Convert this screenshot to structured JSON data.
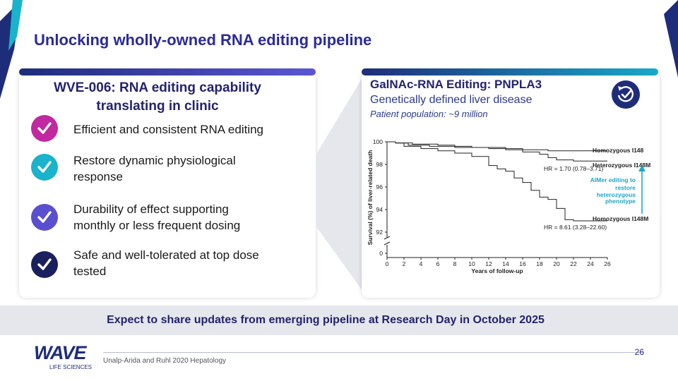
{
  "slide": {
    "title": "Unlocking wholly-owned RNA editing pipeline",
    "page_number": "26",
    "source": "Unalp-Arida and Ruhl 2020 Hepatology",
    "footer_message": "Expect to share updates from emerging pipeline at Research Day in October 2025",
    "logo": {
      "name": "WAVE",
      "sub": "LIFE SCIENCES"
    }
  },
  "left_panel": {
    "heading": "WVE-006: RNA editing capability translating in clinic",
    "items": [
      {
        "text": "Efficient and consistent RNA editing",
        "color": "#c0299f"
      },
      {
        "text": "Restore dynamic physiological response",
        "color": "#19b3cc"
      },
      {
        "text": "Durability of effect supporting monthly or less frequent dosing",
        "color": "#5a4fcf"
      },
      {
        "text": "Safe and well-tolerated at top dose tested",
        "color": "#1a1f5e"
      }
    ]
  },
  "right_panel": {
    "heading": "GalNAc-RNA Editing: PNPLA3",
    "subtitle": "Genetically defined liver disease",
    "population": "Patient population: ~9 million",
    "badge_icon": "clock-check-icon"
  },
  "chart_data": {
    "type": "line",
    "xlabel": "Years of follow-up",
    "ylabel": "Survival (%) of liver-related death",
    "xlim": [
      0,
      26
    ],
    "xticks": [
      "0",
      "2",
      "4",
      "6",
      "8",
      "10",
      "12",
      "14",
      "16",
      "18",
      "20",
      "22",
      "24",
      "26"
    ],
    "yticks": [
      "0",
      "92",
      "94",
      "96",
      "98",
      "100"
    ],
    "axis_break": true,
    "series": [
      {
        "name": "Homozygous I148",
        "x": [
          0,
          1,
          3,
          6,
          8,
          10,
          12,
          14,
          16,
          18,
          19,
          20,
          26
        ],
        "y": [
          100,
          99.9,
          99.8,
          99.7,
          99.6,
          99.5,
          99.5,
          99.4,
          99.3,
          99.3,
          99.2,
          99.2,
          99.2
        ]
      },
      {
        "name": "Heterozygous I148M",
        "x": [
          0,
          1,
          2.5,
          5,
          8,
          10,
          12,
          14,
          16,
          18,
          19,
          20,
          22,
          26
        ],
        "y": [
          100,
          99.9,
          99.7,
          99.6,
          99.5,
          99.5,
          99.4,
          99.3,
          99.1,
          98.9,
          98.6,
          98.4,
          98.3,
          98.3
        ]
      },
      {
        "name": "Homozygous I148M",
        "x": [
          0,
          1,
          2,
          4,
          6,
          8,
          10,
          12,
          13,
          14,
          15,
          16,
          17,
          18,
          19,
          20,
          21,
          22,
          26
        ],
        "y": [
          100,
          99.9,
          99.6,
          99.4,
          99.2,
          99.0,
          98.7,
          97.9,
          97.6,
          97.4,
          96.8,
          96.4,
          95.7,
          95.1,
          94.9,
          94.1,
          93.1,
          93.0,
          93.0
        ]
      }
    ],
    "annotations": [
      "HR = 1.70 (0.78–3.71)",
      "HR = 8.61 (3.28–22.60)",
      "AIMer editing to",
      "restore",
      "heterozygous",
      "phenotype"
    ],
    "colors": {
      "lines": "#222222",
      "annotation": "#1aa8c8"
    }
  }
}
